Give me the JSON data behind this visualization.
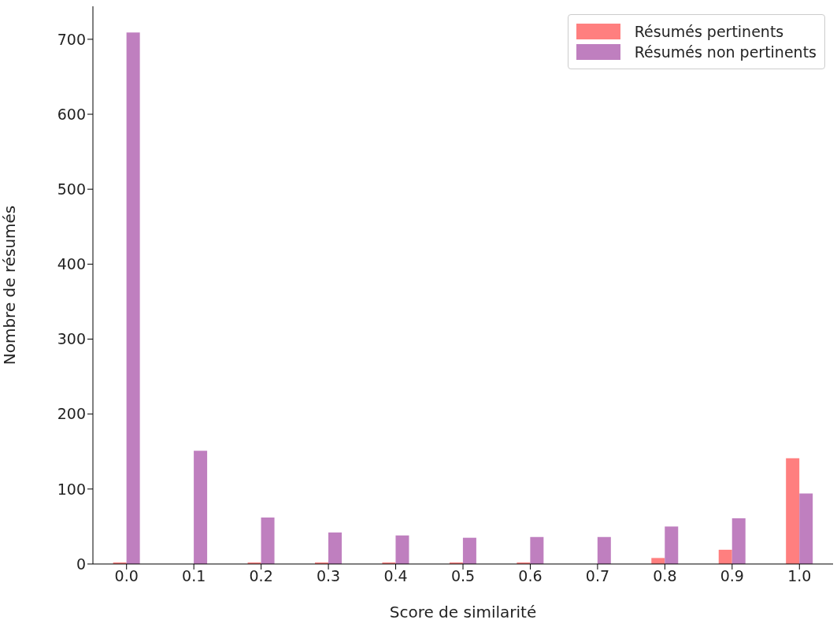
{
  "chart_data": {
    "type": "bar",
    "xlabel": "Score de similarité",
    "ylabel": "Nombre de résumés",
    "categories": [
      "0.0",
      "0.1",
      "0.2",
      "0.3",
      "0.4",
      "0.5",
      "0.6",
      "0.7",
      "0.8",
      "0.9",
      "1.0"
    ],
    "series": [
      {
        "name": "Résumés pertinents",
        "color": "#ff7f7f",
        "values": [
          2,
          0,
          2,
          2,
          2,
          2,
          2,
          0,
          8,
          19,
          141
        ]
      },
      {
        "name": "Résumés non pertinents",
        "color": "#bf7fbf",
        "values": [
          709,
          151,
          62,
          42,
          38,
          35,
          36,
          36,
          50,
          61,
          94
        ]
      }
    ],
    "ylim": [
      0,
      744
    ],
    "yticks": [
      0,
      100,
      200,
      300,
      400,
      500,
      600,
      700
    ],
    "grid": false,
    "legend": "top right"
  }
}
